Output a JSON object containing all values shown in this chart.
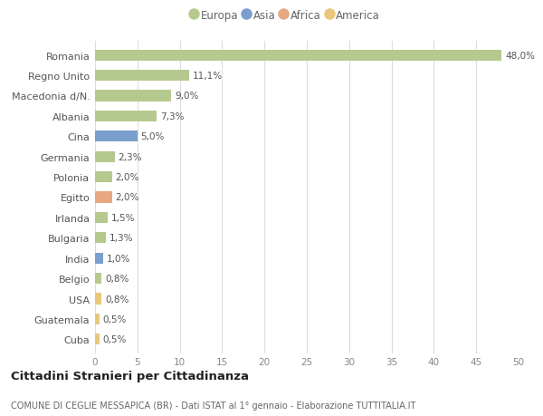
{
  "countries": [
    "Romania",
    "Regno Unito",
    "Macedonia d/N.",
    "Albania",
    "Cina",
    "Germania",
    "Polonia",
    "Egitto",
    "Irlanda",
    "Bulgaria",
    "India",
    "Belgio",
    "USA",
    "Guatemala",
    "Cuba"
  ],
  "values": [
    48.0,
    11.1,
    9.0,
    7.3,
    5.0,
    2.3,
    2.0,
    2.0,
    1.5,
    1.3,
    1.0,
    0.8,
    0.8,
    0.5,
    0.5
  ],
  "labels": [
    "48,0%",
    "11,1%",
    "9,0%",
    "7,3%",
    "5,0%",
    "2,3%",
    "2,0%",
    "2,0%",
    "1,5%",
    "1,3%",
    "1,0%",
    "0,8%",
    "0,8%",
    "0,5%",
    "0,5%"
  ],
  "colors": [
    "#b5c98e",
    "#b5c98e",
    "#b5c98e",
    "#b5c98e",
    "#7b9fcc",
    "#b5c98e",
    "#b5c98e",
    "#e8a882",
    "#b5c98e",
    "#b5c98e",
    "#7b9fcc",
    "#b5c98e",
    "#e8c87a",
    "#e8c87a",
    "#e8c87a"
  ],
  "legend_labels": [
    "Europa",
    "Asia",
    "Africa",
    "America"
  ],
  "legend_colors": [
    "#b5c98e",
    "#7b9fcc",
    "#e8a882",
    "#e8c87a"
  ],
  "title": "Cittadini Stranieri per Cittadinanza",
  "subtitle": "COMUNE DI CEGLIE MESSAPICA (BR) - Dati ISTAT al 1° gennaio - Elaborazione TUTTITALIA.IT",
  "xlim": [
    0,
    50
  ],
  "xticks": [
    0,
    5,
    10,
    15,
    20,
    25,
    30,
    35,
    40,
    45,
    50
  ],
  "background_color": "#ffffff",
  "grid_color": "#dddddd",
  "bar_height": 0.55
}
